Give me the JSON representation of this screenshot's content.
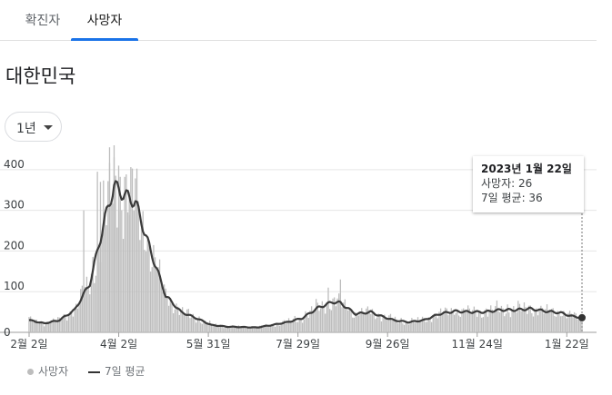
{
  "tabs": [
    {
      "label": "확진자",
      "active": false
    },
    {
      "label": "사망자",
      "active": true
    }
  ],
  "page_title": "대한민국",
  "range_selector": {
    "label": "1년"
  },
  "tooltip": {
    "date": "2023년 1월 22일",
    "deaths": "사망자: 26",
    "avg": "7일 평균: 36"
  },
  "legend": {
    "deaths": "사망자",
    "avg": "7일 평균"
  },
  "colors": {
    "bar": "#bdbdbd",
    "line": "#3a3a3a",
    "grid": "#e6e6e6",
    "tab_accent": "#1a73e8"
  },
  "chart_data": {
    "type": "bar",
    "y_ticks": [
      0,
      100,
      200,
      300,
      400
    ],
    "ylim": [
      0,
      460
    ],
    "x_tick_labels": [
      "2월 2일",
      "4월 2일",
      "5월 31일",
      "7월 29일",
      "9월 26일",
      "11월 24일",
      "1월 22일"
    ],
    "x_range_days": 364,
    "series": [
      {
        "name": "사망자",
        "kind": "bars"
      },
      {
        "name": "7일 평균",
        "kind": "line",
        "points": [
          [
            0,
            30
          ],
          [
            10,
            22
          ],
          [
            20,
            30
          ],
          [
            30,
            55
          ],
          [
            40,
            120
          ],
          [
            50,
            280
          ],
          [
            56,
            360
          ],
          [
            62,
            340
          ],
          [
            70,
            320
          ],
          [
            80,
            200
          ],
          [
            90,
            90
          ],
          [
            100,
            50
          ],
          [
            110,
            35
          ],
          [
            120,
            18
          ],
          [
            130,
            14
          ],
          [
            150,
            12
          ],
          [
            160,
            18
          ],
          [
            170,
            25
          ],
          [
            180,
            35
          ],
          [
            190,
            60
          ],
          [
            200,
            75
          ],
          [
            205,
            72
          ],
          [
            215,
            45
          ],
          [
            225,
            50
          ],
          [
            230,
            42
          ],
          [
            240,
            30
          ],
          [
            250,
            25
          ],
          [
            260,
            30
          ],
          [
            270,
            45
          ],
          [
            280,
            52
          ],
          [
            290,
            50
          ],
          [
            300,
            50
          ],
          [
            310,
            55
          ],
          [
            320,
            55
          ],
          [
            330,
            58
          ],
          [
            340,
            52
          ],
          [
            350,
            48
          ],
          [
            357,
            40
          ],
          [
            364,
            36
          ]
        ]
      }
    ]
  }
}
